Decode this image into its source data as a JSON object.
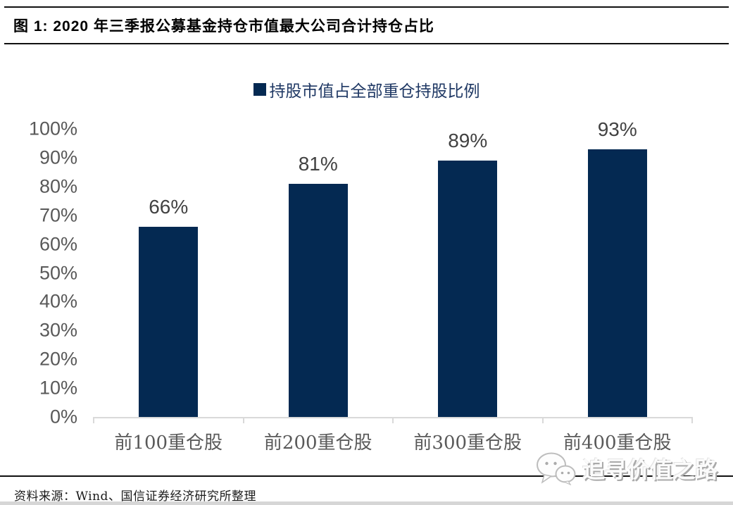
{
  "figure": {
    "title": "图 1: 2020 年三季报公募基金持仓市值最大公司合计持仓占比",
    "source_note": "资料来源：Wind、国信证券经济研究所整理",
    "watermark_text": "追寻价值之路"
  },
  "legend": {
    "label": "持股市值占全部重仓持股比例"
  },
  "chart_data": {
    "type": "bar",
    "title": "2020 年三季报公募基金持仓市值最大公司合计持仓占比",
    "series_name": "持股市值占全部重仓持股比例",
    "categories": [
      "前100重仓股",
      "前200重仓股",
      "前300重仓股",
      "前400重仓股"
    ],
    "values": [
      66,
      81,
      89,
      93
    ],
    "value_labels": [
      "66%",
      "81%",
      "89%",
      "93%"
    ],
    "ylim": [
      0,
      100
    ],
    "y_tick_step": 10,
    "y_tick_labels": [
      "0%",
      "10%",
      "20%",
      "30%",
      "40%",
      "50%",
      "60%",
      "70%",
      "80%",
      "90%",
      "100%"
    ],
    "grid": false,
    "legend_position": "top-center",
    "bar_color": "#042952",
    "axis_line_color": "#d9d9d9"
  },
  "colors": {
    "bar": "#042952",
    "legend_text": "#1f3864",
    "axis_text": "#595959",
    "value_label_text": "#424242",
    "axis_line": "#d9d9d9",
    "rule": "#111111"
  }
}
